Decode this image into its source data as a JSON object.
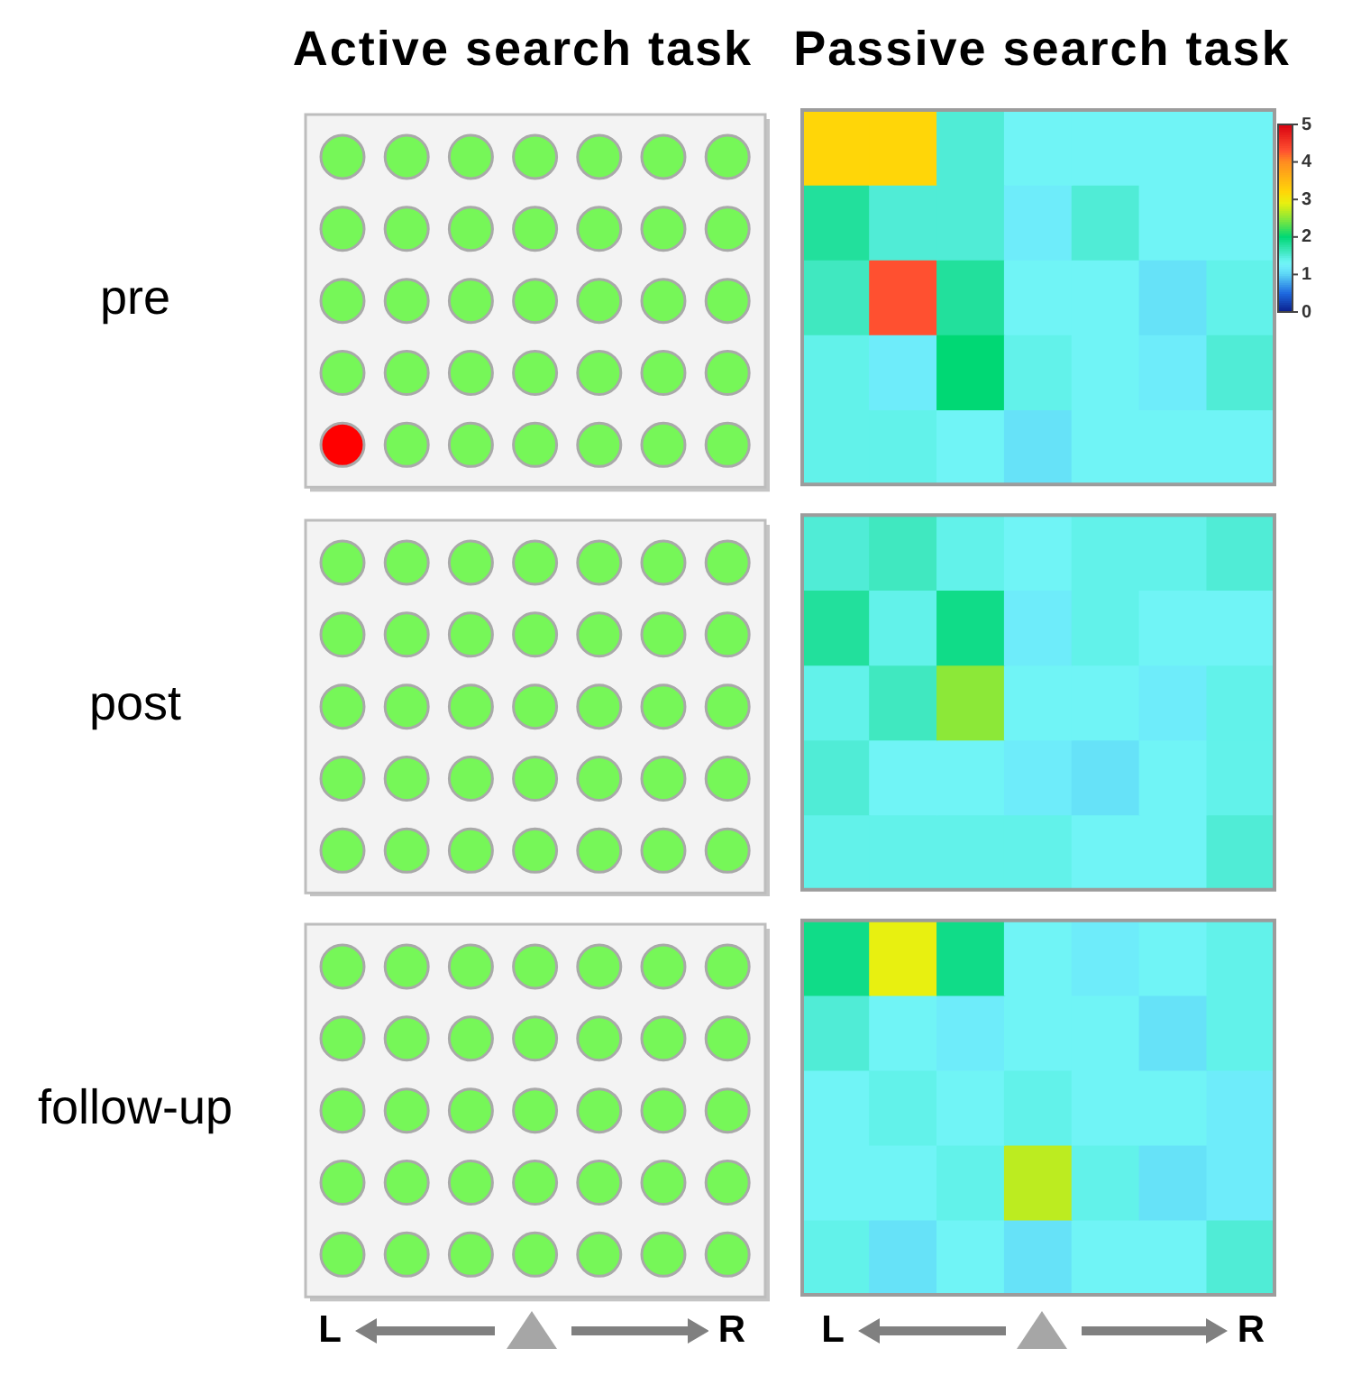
{
  "chart_data": {
    "type": "heatmap",
    "title": "Passive search task",
    "annotations": [
      "Active search task",
      "L",
      "R",
      "L",
      "R"
    ],
    "categories": [
      null,
      null,
      null,
      null,
      null,
      null,
      null
    ],
    "y_categories": [
      null,
      null,
      "pre",
      null,
      null,
      null,
      null,
      "post",
      null,
      null,
      null,
      null,
      "follow-up",
      null,
      null
    ],
    "cells": [
      [
        3.2,
        3.2,
        1.5,
        1.3,
        1.3,
        1.3,
        1.3
      ],
      [
        1.8,
        1.5,
        1.5,
        1.2,
        1.5,
        1.3,
        1.3
      ],
      [
        1.6,
        4.3,
        1.8,
        1.3,
        1.3,
        1.1,
        1.4
      ],
      [
        1.4,
        1.2,
        2.0,
        1.4,
        1.3,
        1.2,
        1.5
      ],
      [
        1.4,
        1.4,
        1.3,
        1.1,
        1.3,
        1.3,
        1.3
      ],
      [
        1.5,
        1.6,
        1.4,
        1.3,
        1.4,
        1.4,
        1.5
      ],
      [
        1.8,
        1.4,
        1.9,
        1.2,
        1.4,
        1.3,
        1.3
      ],
      [
        1.4,
        1.6,
        2.5,
        1.3,
        1.3,
        1.2,
        1.4
      ],
      [
        1.5,
        1.3,
        1.3,
        1.2,
        1.1,
        1.3,
        1.4
      ],
      [
        1.4,
        1.4,
        1.4,
        1.4,
        1.3,
        1.3,
        1.5
      ],
      [
        1.9,
        2.9,
        1.9,
        1.3,
        1.2,
        1.3,
        1.4
      ],
      [
        1.5,
        1.3,
        1.2,
        1.3,
        1.3,
        1.1,
        1.4
      ],
      [
        1.3,
        1.4,
        1.3,
        1.4,
        1.3,
        1.3,
        1.2
      ],
      [
        1.3,
        1.3,
        1.4,
        2.7,
        1.4,
        1.1,
        1.2
      ],
      [
        1.4,
        1.1,
        1.3,
        1.1,
        1.3,
        1.3,
        1.5
      ]
    ],
    "clim": [
      0,
      5
    ],
    "cticks": [
      0,
      1,
      2,
      3,
      4,
      5
    ]
  }
}
